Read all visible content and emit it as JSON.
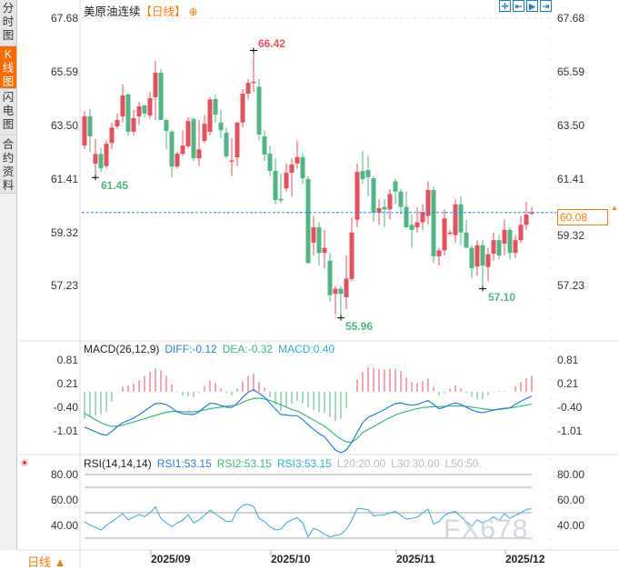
{
  "sidebar": {
    "tabs": [
      {
        "label": "分时图",
        "active": false
      },
      {
        "label": "K线图",
        "active": true
      },
      {
        "label": "闪电图",
        "active": false
      },
      {
        "label": "合约资料",
        "active": false
      }
    ]
  },
  "header": {
    "title": "美原油连续",
    "period": "【日线】",
    "zoom_icon": "circle-plus-icon"
  },
  "toolbar": {
    "icons": [
      "crosshair-icon",
      "fit-left-icon",
      "play-right-icon",
      "jump-end-icon"
    ]
  },
  "colors": {
    "up": "#e84f5e",
    "down": "#4fb784",
    "diff": "#2a7de1",
    "dea": "#3cb878",
    "rsi": "#2eaadc",
    "accent": "#ff7a00",
    "last_line": "#1a8cff"
  },
  "price_axis": {
    "ticks": [
      "67.68",
      "65.59",
      "63.50",
      "61.41",
      "59.32",
      "57.23"
    ],
    "range": [
      55.5,
      67.68
    ]
  },
  "price_marks": {
    "high": "66.42",
    "low1": "61.45",
    "low2": "55.96",
    "low3": "57.10",
    "last": "60.08"
  },
  "chart_data": [
    {
      "type": "candlestick",
      "title": "美原油连续",
      "x_labels": [
        "2025/09",
        "2025/10",
        "2025/11",
        "2025/12"
      ],
      "ohlc": [
        [
          62.7,
          64.05,
          62.56,
          63.84
        ],
        [
          63.84,
          64.13,
          62.45,
          63.06
        ],
        [
          61.99,
          62.95,
          61.45,
          62.37
        ],
        [
          62.37,
          62.6,
          61.65,
          61.81
        ],
        [
          61.9,
          62.9,
          61.8,
          62.77
        ],
        [
          62.8,
          63.6,
          62.55,
          63.4
        ],
        [
          63.45,
          63.95,
          63.35,
          63.7
        ],
        [
          63.84,
          65.1,
          63.6,
          64.66
        ],
        [
          64.7,
          64.75,
          63.1,
          63.24
        ],
        [
          63.24,
          64.1,
          63.1,
          63.77
        ],
        [
          63.84,
          64.4,
          63.5,
          64.23
        ],
        [
          64.27,
          64.3,
          63.8,
          63.95
        ],
        [
          63.88,
          64.8,
          63.75,
          64.55
        ],
        [
          64.59,
          66.0,
          63.7,
          65.55
        ],
        [
          65.55,
          65.7,
          63.7,
          63.7
        ],
        [
          63.7,
          63.75,
          62.55,
          63.27
        ],
        [
          63.24,
          63.3,
          61.45,
          61.88
        ],
        [
          61.88,
          62.45,
          61.8,
          62.38
        ],
        [
          62.38,
          63.3,
          62.3,
          62.7
        ],
        [
          62.67,
          63.8,
          62.6,
          63.66
        ],
        [
          63.73,
          63.8,
          62.1,
          62.2
        ],
        [
          62.2,
          63.7,
          61.9,
          62.55
        ],
        [
          62.88,
          63.9,
          62.8,
          63.55
        ],
        [
          63.24,
          64.6,
          63.1,
          64.5
        ],
        [
          64.52,
          64.7,
          63.6,
          63.91
        ],
        [
          63.6,
          64.1,
          63.0,
          63.3
        ],
        [
          63.2,
          63.4,
          62.2,
          62.28
        ],
        [
          62.1,
          63.0,
          61.5,
          62.12
        ],
        [
          62.24,
          63.6,
          61.9,
          63.6
        ],
        [
          63.6,
          64.9,
          63.4,
          64.73
        ],
        [
          64.73,
          65.3,
          64.5,
          65.15
        ],
        [
          65.15,
          66.42,
          64.8,
          65.2
        ],
        [
          65.0,
          65.3,
          62.9,
          63.13
        ],
        [
          63.06,
          63.3,
          62.1,
          62.35
        ],
        [
          62.38,
          62.7,
          61.5,
          61.71
        ],
        [
          61.71,
          62.2,
          60.4,
          60.57
        ],
        [
          60.62,
          61.6,
          60.45,
          60.55
        ],
        [
          61.03,
          62.0,
          60.9,
          61.64
        ],
        [
          61.64,
          62.2,
          60.7,
          61.96
        ],
        [
          62.0,
          62.9,
          61.8,
          62.25
        ],
        [
          62.25,
          62.4,
          61.2,
          61.42
        ],
        [
          61.39,
          61.5,
          58.1,
          58.1
        ],
        [
          58.9,
          59.95,
          58.4,
          59.5
        ],
        [
          59.5,
          59.7,
          58.0,
          58.5
        ],
        [
          58.5,
          59.4,
          57.9,
          58.7
        ],
        [
          58.2,
          58.5,
          56.6,
          56.85
        ],
        [
          56.9,
          57.2,
          56.1,
          57.1
        ],
        [
          57.1,
          57.2,
          55.96,
          56.9
        ],
        [
          56.77,
          58.4,
          56.3,
          57.5
        ],
        [
          57.48,
          59.9,
          57.4,
          59.3
        ],
        [
          59.8,
          62.0,
          59.5,
          61.67
        ],
        [
          61.7,
          62.5,
          61.2,
          61.39
        ],
        [
          61.74,
          62.3,
          60.7,
          61.46
        ],
        [
          61.42,
          61.5,
          59.7,
          60.07
        ],
        [
          60.07,
          60.6,
          59.6,
          60.25
        ],
        [
          60.3,
          60.6,
          59.5,
          60.2
        ],
        [
          60.2,
          61.0,
          59.8,
          60.8
        ],
        [
          61.3,
          61.4,
          60.4,
          60.9
        ],
        [
          60.9,
          61.0,
          60.0,
          60.3
        ],
        [
          60.3,
          60.9,
          59.5,
          59.5
        ],
        [
          59.6,
          60.0,
          58.7,
          59.4
        ],
        [
          59.5,
          60.3,
          59.3,
          59.7
        ],
        [
          59.7,
          60.4,
          59.4,
          60.1
        ],
        [
          59.95,
          61.3,
          59.6,
          60.96
        ],
        [
          60.96,
          61.1,
          58.1,
          58.37
        ],
        [
          58.37,
          58.7,
          58.0,
          58.6
        ],
        [
          58.6,
          60.2,
          58.4,
          59.85
        ],
        [
          59.3,
          59.4,
          59.2,
          59.3
        ],
        [
          59.2,
          60.6,
          58.9,
          60.4
        ],
        [
          60.4,
          60.7,
          58.8,
          59.3
        ],
        [
          59.3,
          59.8,
          58.7,
          58.7
        ],
        [
          58.7,
          58.8,
          57.5,
          57.9
        ],
        [
          57.97,
          59.0,
          57.6,
          58.8
        ],
        [
          58.8,
          59.0,
          57.1,
          58.0
        ],
        [
          57.95,
          58.7,
          57.4,
          58.45
        ],
        [
          58.47,
          59.3,
          58.2,
          59.0
        ],
        [
          59.0,
          59.2,
          58.25,
          58.4
        ],
        [
          58.86,
          59.8,
          58.4,
          59.4
        ],
        [
          59.4,
          59.5,
          58.25,
          58.5
        ],
        [
          58.5,
          59.2,
          58.3,
          59.0
        ],
        [
          59.0,
          59.95,
          58.9,
          59.6
        ],
        [
          59.6,
          60.5,
          59.4,
          60.0
        ],
        [
          60.05,
          60.3,
          60.0,
          60.08
        ]
      ]
    },
    {
      "type": "line",
      "title": "MACD(26,12,9)",
      "ticks": [
        "0.81",
        "0.21",
        "-0.40",
        "-1.01"
      ],
      "range": [
        -1.65,
        0.95
      ],
      "labels": {
        "diff": "DIFF:-0.12",
        "dea": "DEA:-0.32",
        "macd": "MACD:0.40"
      },
      "diff": [
        -0.91,
        -0.97,
        -1.03,
        -1.09,
        -1.12,
        -1.02,
        -0.9,
        -0.8,
        -0.74,
        -0.68,
        -0.6,
        -0.5,
        -0.4,
        -0.31,
        -0.3,
        -0.33,
        -0.42,
        -0.52,
        -0.57,
        -0.58,
        -0.59,
        -0.52,
        -0.4,
        -0.3,
        -0.31,
        -0.36,
        -0.4,
        -0.41,
        -0.3,
        -0.15,
        -0.02,
        0.05,
        -0.05,
        -0.14,
        -0.3,
        -0.45,
        -0.59,
        -0.6,
        -0.62,
        -0.62,
        -0.72,
        -0.85,
        -0.97,
        -1.08,
        -1.16,
        -1.33,
        -1.5,
        -1.57,
        -1.5,
        -1.3,
        -1.05,
        -0.8,
        -0.66,
        -0.6,
        -0.53,
        -0.46,
        -0.38,
        -0.31,
        -0.29,
        -0.33,
        -0.35,
        -0.33,
        -0.28,
        -0.23,
        -0.33,
        -0.44,
        -0.4,
        -0.33,
        -0.29,
        -0.33,
        -0.4,
        -0.47,
        -0.52,
        -0.54,
        -0.51,
        -0.48,
        -0.45,
        -0.43,
        -0.42,
        -0.33,
        -0.25,
        -0.18,
        -0.12
      ],
      "dea": [
        -0.56,
        -0.64,
        -0.72,
        -0.8,
        -0.86,
        -0.89,
        -0.89,
        -0.86,
        -0.82,
        -0.78,
        -0.74,
        -0.7,
        -0.65,
        -0.61,
        -0.57,
        -0.53,
        -0.51,
        -0.51,
        -0.52,
        -0.52,
        -0.52,
        -0.5,
        -0.47,
        -0.44,
        -0.42,
        -0.4,
        -0.38,
        -0.36,
        -0.34,
        -0.28,
        -0.22,
        -0.18,
        -0.17,
        -0.19,
        -0.23,
        -0.28,
        -0.34,
        -0.4,
        -0.46,
        -0.5,
        -0.57,
        -0.65,
        -0.73,
        -0.81,
        -0.89,
        -1.0,
        -1.12,
        -1.22,
        -1.29,
        -1.3,
        -1.2,
        -1.05,
        -0.97,
        -0.9,
        -0.82,
        -0.74,
        -0.67,
        -0.6,
        -0.55,
        -0.51,
        -0.47,
        -0.44,
        -0.41,
        -0.4,
        -0.39,
        -0.39,
        -0.38,
        -0.37,
        -0.37,
        -0.37,
        -0.38,
        -0.4,
        -0.42,
        -0.44,
        -0.46,
        -0.47,
        -0.46,
        -0.44,
        -0.42,
        -0.4,
        -0.37,
        -0.35,
        -0.32
      ]
    },
    {
      "type": "line",
      "title": "RSI(14,14,14)",
      "ticks": [
        "80.00",
        "60.00",
        "40.00"
      ],
      "range": [
        20,
        85
      ],
      "labels": {
        "rsi1": "RSI1:53.15",
        "rsi2": "RSI2:53.15",
        "rsi3": "RSI3:53.15",
        "l20": "L20:20.00",
        "l30": "L30:30.00",
        "l50": "L50:50."
      },
      "levels": [
        80,
        70,
        50,
        30
      ],
      "rsi": [
        42.7,
        40.5,
        38.5,
        36.4,
        40,
        43,
        46,
        49.2,
        44.4,
        46.5,
        48.5,
        47,
        50,
        54.5,
        45.6,
        42,
        39,
        42,
        44,
        48.5,
        42,
        44.4,
        48,
        52,
        49,
        46,
        43.2,
        43.2,
        52,
        55.8,
        56.5,
        55,
        45.6,
        43,
        39,
        36.6,
        37,
        42,
        44.4,
        46,
        42,
        31,
        37.8,
        36,
        33,
        31,
        32.2,
        33,
        37,
        44,
        53.3,
        53,
        52.4,
        47.5,
        48,
        48.5,
        50,
        50.9,
        48,
        45,
        45.5,
        46.5,
        50,
        52.8,
        41,
        43,
        48,
        50,
        51,
        47,
        43,
        39.5,
        44.4,
        42,
        44,
        46.8,
        44,
        49.2,
        45.6,
        48,
        50,
        52.6,
        53.15
      ]
    }
  ],
  "footer": {
    "period_button": "日线 ▲",
    "dates": [
      "2025/09",
      "2025/10",
      "2025/11",
      "2025/12"
    ]
  },
  "watermark": "FX678"
}
